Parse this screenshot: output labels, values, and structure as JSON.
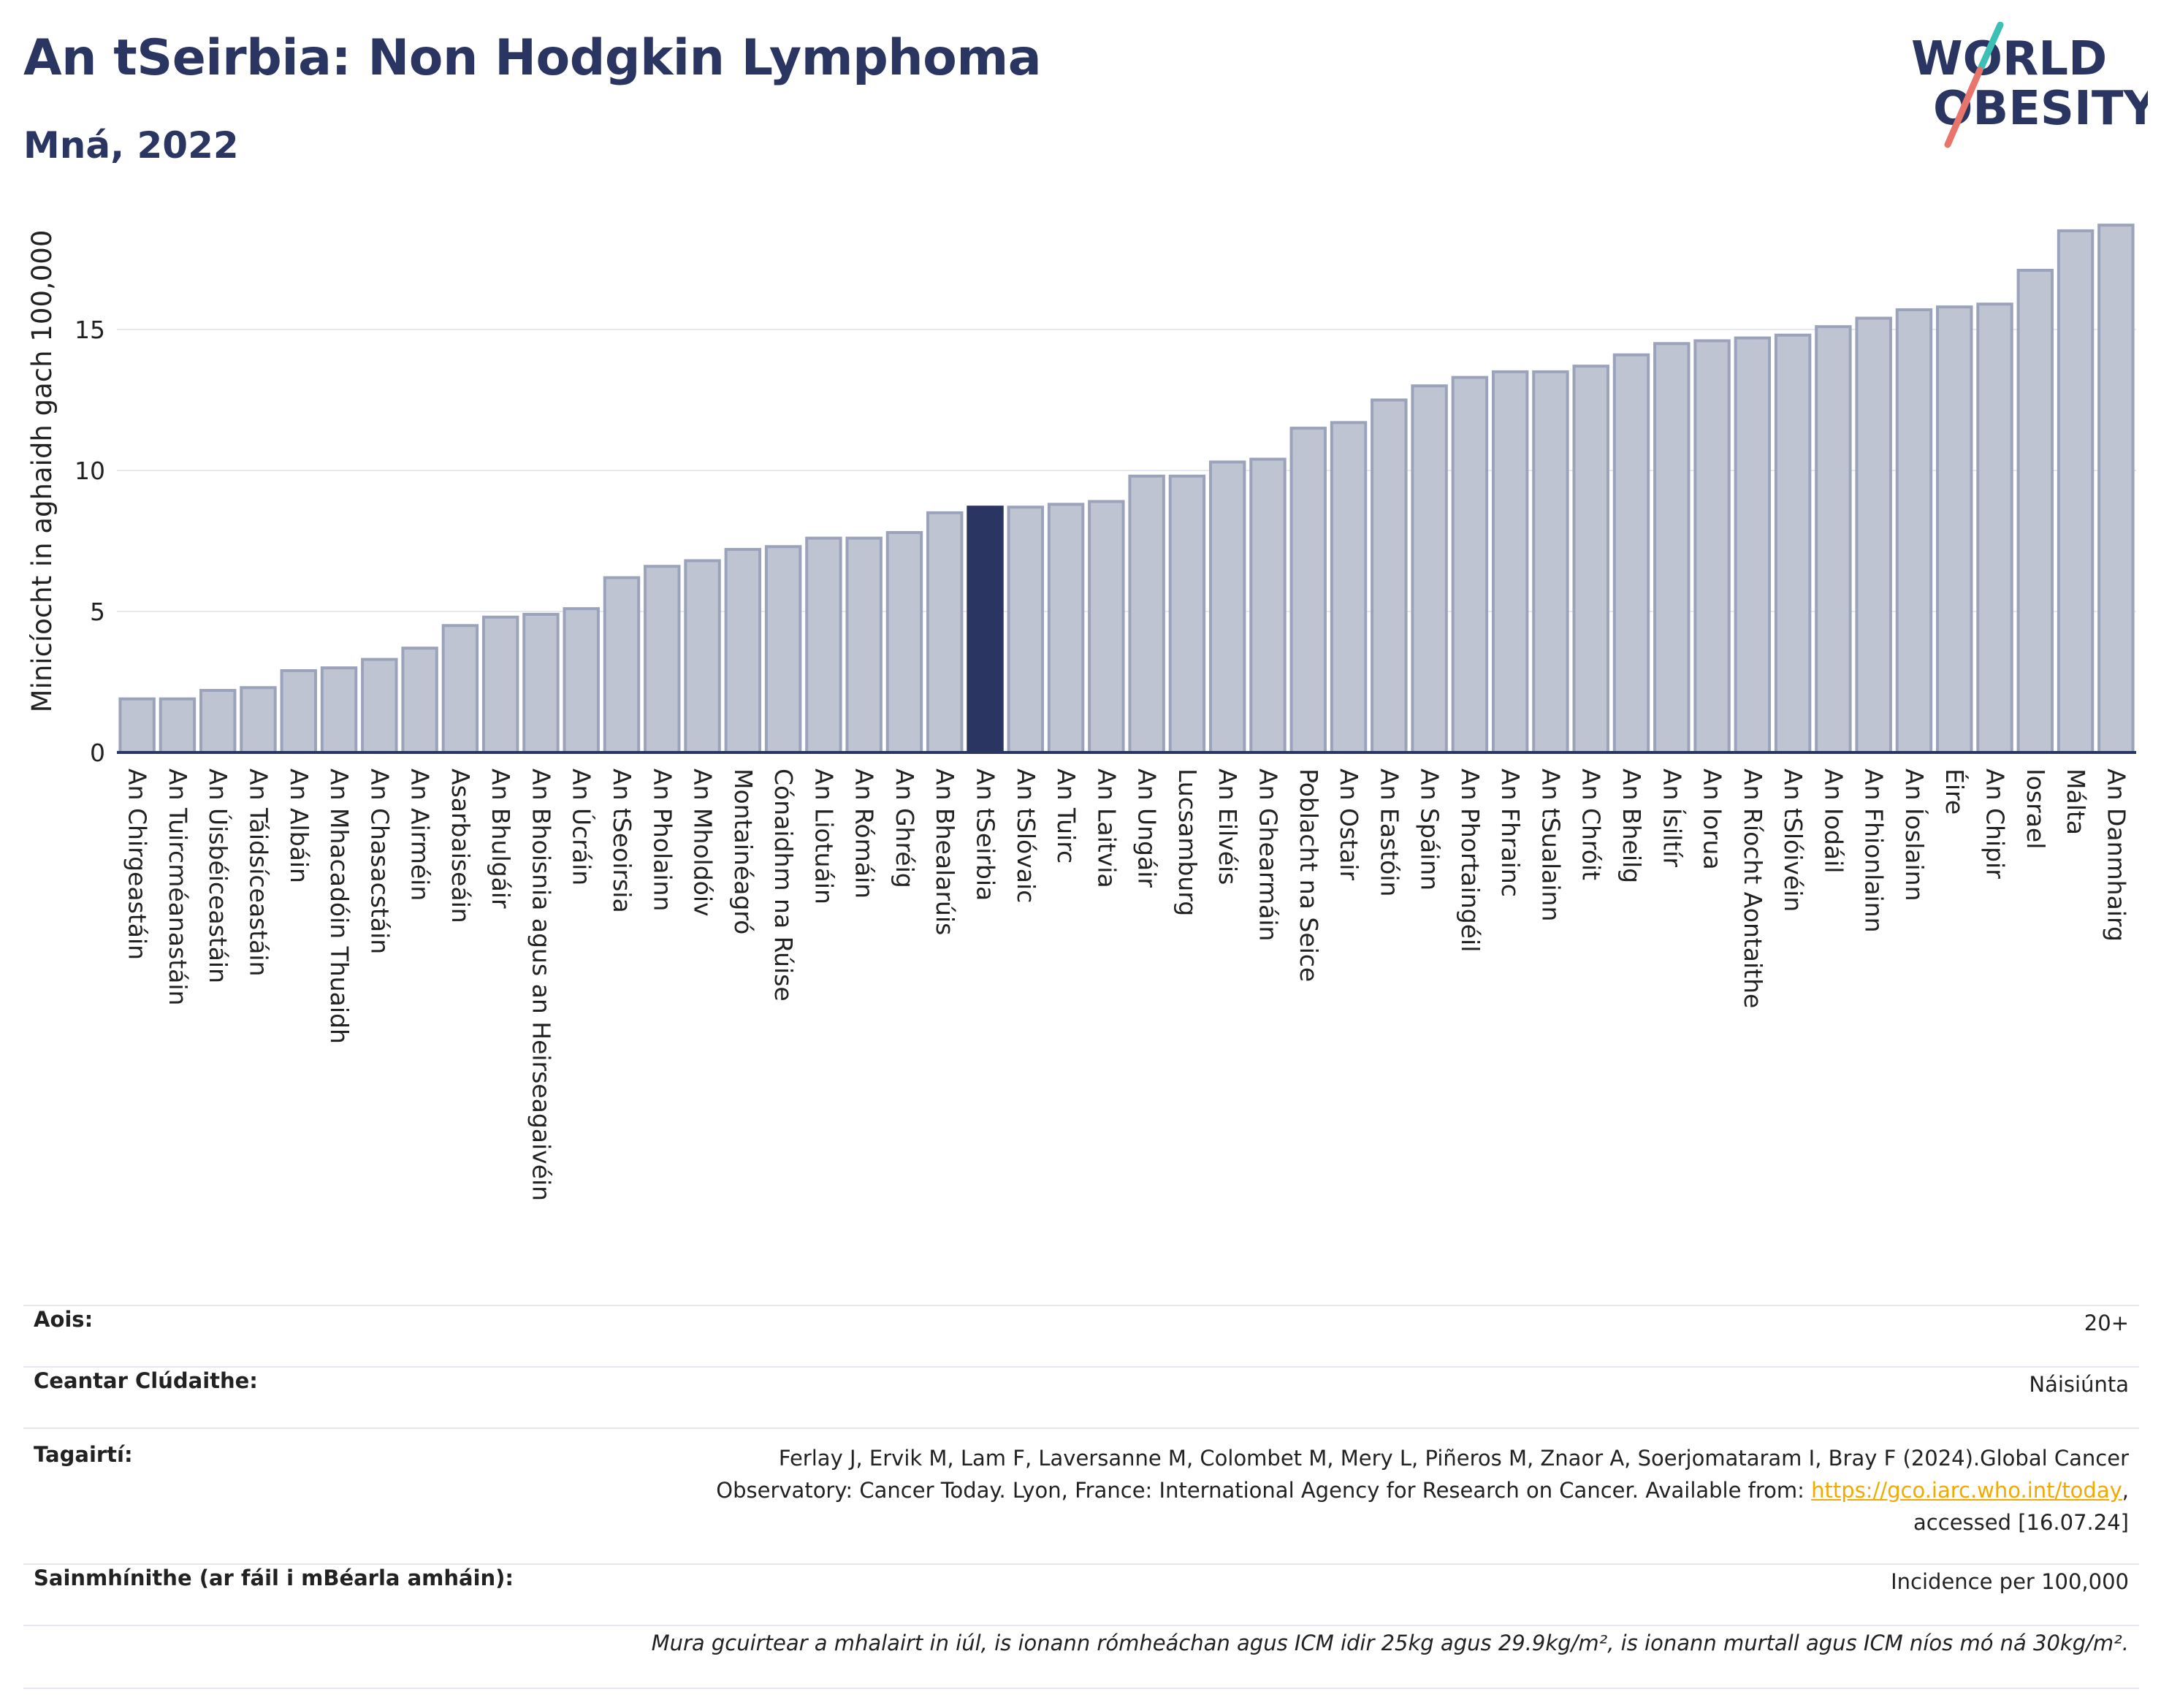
{
  "header": {
    "title": "An tSeirbia: Non Hodgkin Lymphoma",
    "subtitle": "Mná, 2022"
  },
  "logo": {
    "line1": "WORLD",
    "line2": "OBESITY",
    "colors": {
      "text": "#2b3561",
      "slash_red": "#e8746b",
      "slash_teal": "#3cbfb4"
    }
  },
  "colors": {
    "bar_default": "#bfc4d2",
    "bar_default_stroke": "#9ba3bb",
    "bar_highlight": "#2b3561",
    "axis": "#2b3561",
    "grid": "#e6e8ef",
    "text_dark": "#2b3561",
    "link": "#f2a900"
  },
  "chart_data": {
    "type": "bar",
    "title": "An tSeirbia: Non Hodgkin Lymphoma",
    "subtitle": "Mná, 2022",
    "xlabel": "",
    "ylabel": "Minicíocht in aghaidh gach 100,000",
    "ylim": [
      0,
      19
    ],
    "yticks": [
      0,
      5,
      10,
      15
    ],
    "grid": true,
    "highlight": "An tSeirbia",
    "categories": [
      "An Chirgeastáin",
      "An Tuircméanastáin",
      "An Úisbéiceastáin",
      "An Táidsíceastáin",
      "An Albáin",
      "An Mhacadóin Thuaidh",
      "An Chasacstáin",
      "An Airméin",
      "Asarbaiseáin",
      "An Bhulgáir",
      "An Bhoisnia agus an Heirseagaivéin",
      "An Úcráin",
      "An tSeoirsia",
      "An Pholainn",
      "An Mholdóiv",
      "Montainéagró",
      "Cónaidhm na Rúise",
      "An Liotuáin",
      "An Rómáin",
      "An Ghréig",
      "An Bhealarúis",
      "An tSeirbia",
      "An tSlóvaic",
      "An Tuirc",
      "An Laitvia",
      "An Ungáir",
      "Lucsamburg",
      "An Eilvéis",
      "An Ghearmáin",
      "Poblacht na Seice",
      "An Ostair",
      "An Eastóin",
      "An Spáinn",
      "An Phortaingéil",
      "An Fhrainc",
      "An tSualainn",
      "An Chróit",
      "An Bheilg",
      "An Ísiltír",
      "An Iorua",
      "An Ríocht Aontaithe",
      "An tSlóivéin",
      "An Iodáil",
      "An Fhionlainn",
      "An Íoslainn",
      "Éire",
      "An Chipir",
      "Iosrael",
      "Málta",
      "An Danmhairg"
    ],
    "values": [
      1.9,
      1.9,
      2.2,
      2.3,
      2.9,
      3.0,
      3.3,
      3.7,
      4.5,
      4.8,
      4.9,
      5.1,
      6.2,
      6.6,
      6.8,
      7.2,
      7.3,
      7.6,
      7.6,
      7.8,
      8.5,
      8.7,
      8.7,
      8.8,
      8.9,
      9.8,
      9.8,
      10.3,
      10.4,
      11.5,
      11.7,
      12.5,
      13.0,
      13.3,
      13.5,
      13.5,
      13.7,
      14.1,
      14.5,
      14.6,
      14.7,
      14.8,
      15.1,
      15.4,
      15.7,
      15.8,
      15.9,
      17.1,
      18.5,
      18.7
    ]
  },
  "info": {
    "age_label": "Aois:",
    "age_value": "20+",
    "area_label": "Ceantar Clúdaithe:",
    "area_value": "Náisiúnta",
    "refs_label": "Tagairtí:",
    "refs_text_line1": "Ferlay J, Ervik M, Lam F, Laversanne M, Colombet M, Mery L, Piñeros M, Znaor A, Soerjomataram I, Bray F (2024).Global Cancer",
    "refs_text_line2": "Observatory: Cancer Today. Lyon, France: International Agency for Research on Cancer. Available from: ",
    "refs_link": "https://gco.iarc.who.int/today",
    "refs_text_after_link": ",",
    "refs_text_line3": "accessed [16.07.24]",
    "defs_label": "Sainmhínithe (ar fáil i mBéarla amháin):",
    "defs_value": "Incidence per 100,000",
    "note": "Mura gcuirtear a mhalairt in iúl, is ionann rómheáchan agus ICM idir 25kg agus 29.9kg/m², is ionann murtall agus ICM níos mó ná 30kg/m²."
  }
}
